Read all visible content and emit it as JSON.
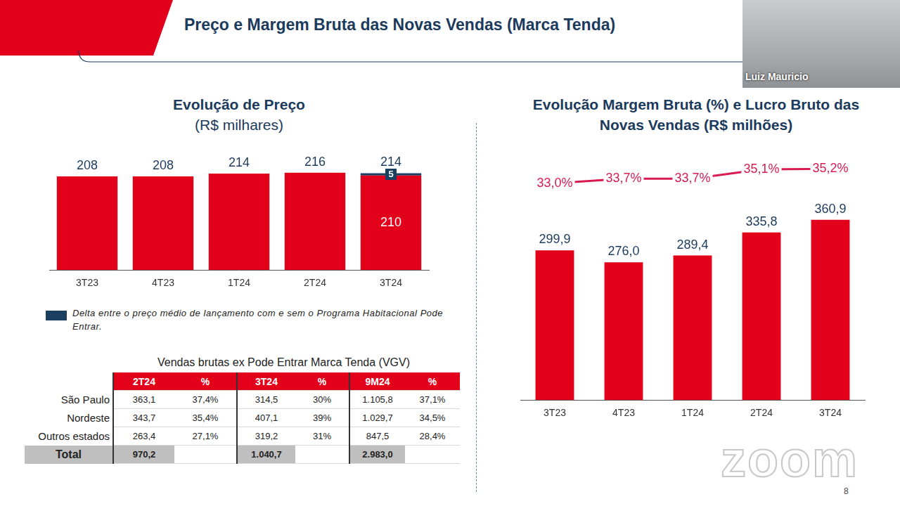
{
  "title": "Preço e Margem Bruta das Novas Vendas (Marca Tenda)",
  "chart_data": [
    {
      "type": "bar",
      "title": "Evolução de Preço",
      "subtitle": "(R$ milhares)",
      "categories": [
        "3T23",
        "4T23",
        "1T24",
        "2T24",
        "3T24"
      ],
      "stacked": true,
      "tick_labels": "x",
      "grid": false,
      "legend": "bottom",
      "ylim": [
        0,
        250
      ],
      "totals": [
        208,
        208,
        214,
        216,
        214
      ],
      "series": [
        {
          "color": "#e3001b",
          "values": [
            208,
            208,
            214,
            216,
            210
          ],
          "value_labels": [
            null,
            null,
            null,
            null,
            "210"
          ]
        },
        {
          "name": "Delta entre o preço médio de lançamento com e sem o Programa Habitacional Pode Entrar.",
          "color": "#1b3f5e",
          "values": [
            null,
            null,
            null,
            null,
            5
          ],
          "data_labels": true
        }
      ]
    },
    {
      "type": "bar",
      "title": "Evolução Margem Bruta (%) e Lucro Bruto das Novas Vendas (R$ milhões)",
      "categories": [
        "3T23",
        "4T23",
        "1T24",
        "2T24",
        "3T24"
      ],
      "tick_labels": "x",
      "grid": false,
      "ylim": [
        0,
        500
      ],
      "y2lim": [
        0,
        38
      ],
      "series": [
        {
          "type": "bar",
          "color": "#e3001b",
          "values": [
            299.9,
            276.0,
            289.4,
            335.8,
            360.9
          ],
          "value_labels": [
            "299,9",
            "276,0",
            "289,4",
            "335,8",
            "360,9"
          ],
          "data_labels": true
        },
        {
          "type": "line",
          "axis": "y2",
          "color": "#d81b50",
          "marker": "none",
          "values": [
            33.0,
            33.7,
            33.7,
            35.1,
            35.2
          ],
          "value_labels": [
            "33,0%",
            "33,7%",
            "33,7%",
            "35,1%",
            "35,2%"
          ],
          "data_labels": true
        }
      ]
    }
  ],
  "table": {
    "title": "Vendas brutas ex Pode Entrar Marca Tenda (VGV)",
    "columns": [
      "2T24",
      "%",
      "3T24",
      "%",
      "9M24",
      "%"
    ],
    "rows": [
      {
        "label": "São Paulo",
        "cells": [
          "363,1",
          "37,4%",
          "314,5",
          "30%",
          "1.105,8",
          "37,1%"
        ]
      },
      {
        "label": "Nordeste",
        "cells": [
          "343,7",
          "35,4%",
          "407,1",
          "39%",
          "1.029,7",
          "34,5%"
        ]
      },
      {
        "label": "Outros estados",
        "cells": [
          "263,4",
          "27,1%",
          "319,2",
          "31%",
          "847,5",
          "28,4%"
        ]
      }
    ],
    "total": {
      "label": "Total",
      "cells": [
        "970,2",
        null,
        "1.040,7",
        null,
        "2.983,0",
        null
      ]
    }
  },
  "speaker": "Luiz Mauricio",
  "watermark": "zoom",
  "page_number": "8"
}
